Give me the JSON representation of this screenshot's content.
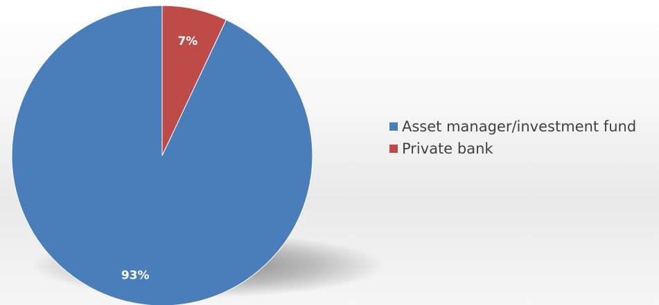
{
  "chart_data": {
    "type": "pie",
    "title": "",
    "slices": [
      {
        "label": "Asset manager/investment fund",
        "value": 93,
        "data_label": "93%",
        "color": "#4A7EBB"
      },
      {
        "label": "Private bank",
        "value": 7,
        "data_label": "7%",
        "color": "#BE4B48"
      }
    ],
    "legend": {
      "position": "right",
      "items": [
        "Asset manager/investment fund",
        "Private bank"
      ]
    }
  }
}
